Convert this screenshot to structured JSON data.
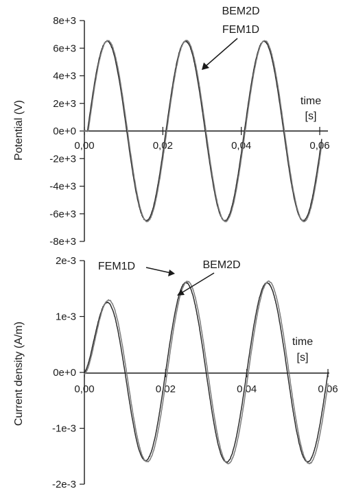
{
  "colors": {
    "axis": "#1a1a1a",
    "series_dark": "#2b2b2b",
    "series_light": "#7a7a7a"
  },
  "chart_data": [
    {
      "type": "line",
      "id": "potential",
      "title": "",
      "ylabel": "Potential (V)",
      "xlabel": "",
      "time_label_1": "time",
      "time_label_2": "[s]",
      "xlim": [
        0,
        0.06
      ],
      "ylim": [
        -8000,
        8000
      ],
      "x_ticks": [
        0.0,
        0.02,
        0.04,
        0.06
      ],
      "x_tick_labels": [
        "0,00",
        "0,02",
        "0,04",
        "0,06"
      ],
      "y_ticks": [
        8000,
        6000,
        4000,
        2000,
        0,
        -2000,
        -4000,
        -6000,
        -8000
      ],
      "y_tick_labels": [
        "8e+3",
        "6e+3",
        "4e+3",
        "2e+3",
        "0e+0",
        "-2e+3",
        "-4e+3",
        "-6e+3",
        "-8e+3"
      ],
      "annotation_1": "BEM2D",
      "annotation_2": "FEM1D",
      "series": [
        {
          "amplitude": 6500,
          "frequency": 50,
          "phase_time": 0.0008,
          "end_time": 0.0605,
          "color": "#2b2b2b"
        },
        {
          "amplitude": 6550,
          "frequency": 50,
          "phase_time": 0.001,
          "end_time": 0.0605,
          "color": "#7a7a7a"
        }
      ]
    },
    {
      "type": "line",
      "id": "current-density",
      "title": "",
      "ylabel": "Current density (A/m)",
      "xlabel": "",
      "time_label_1": "time",
      "time_label_2": "[s]",
      "xlim": [
        0,
        0.06
      ],
      "ylim": [
        -0.002,
        0.002
      ],
      "x_ticks": [
        0.0,
        0.02,
        0.04,
        0.06
      ],
      "x_tick_labels": [
        "0,00",
        "0,02",
        "0,04",
        "0,06"
      ],
      "y_ticks": [
        0.002,
        0.001,
        0,
        -0.001,
        -0.002
      ],
      "y_tick_labels": [
        "2e-3",
        "1e-3",
        "0e+0",
        "-1e-3",
        "-2e-3"
      ],
      "annotation_1": "FEM1D",
      "annotation_2": "BEM2D",
      "series": [
        {
          "name": "FEM1D",
          "base": 0.00053,
          "amplitude": 0.00135,
          "frequency": 50,
          "phase_time": 0.0,
          "color": "#2b2b2b"
        },
        {
          "name": "BEM2D",
          "base": 0.0005,
          "amplitude": 0.00138,
          "frequency": 50,
          "phase_time": 0.0004,
          "color": "#7a7a7a"
        }
      ]
    }
  ]
}
